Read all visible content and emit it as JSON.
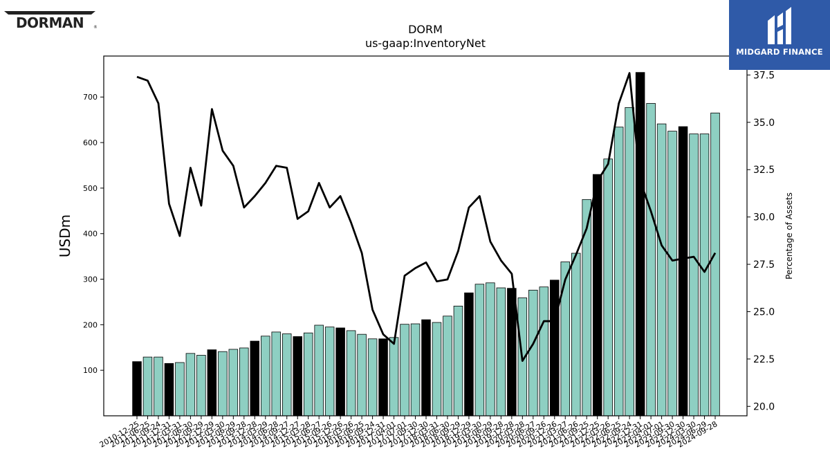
{
  "chart_data": {
    "type": "bar+line",
    "title": "DORM",
    "subtitle": "us-gaap:InventoryNet",
    "ylabel": "USDm",
    "y2label": "Percentage of Assets",
    "ylim": [
      0,
      790
    ],
    "y2lim": [
      19.5,
      38.5
    ],
    "yticks": [
      100,
      200,
      300,
      400,
      500,
      600,
      700
    ],
    "y2ticks": [
      20.0,
      22.5,
      25.0,
      27.5,
      30.0,
      32.5,
      35.0,
      37.5
    ],
    "grid": false,
    "colors": {
      "annual_bar": "#000000",
      "quarter_bar": "#8ecfc2",
      "line": "#000000"
    },
    "categories": [
      "2010-12-25",
      "2011-06-25",
      "2011-09-24",
      "2011-12-31",
      "2012-03-31",
      "2012-06-30",
      "2012-09-29",
      "2012-12-29",
      "2013-03-30",
      "2013-06-29",
      "2013-09-28",
      "2013-12-28",
      "2014-03-29",
      "2014-06-28",
      "2014-09-27",
      "2014-12-27",
      "2015-03-28",
      "2015-06-27",
      "2015-09-26",
      "2015-12-26",
      "2016-03-26",
      "2016-06-25",
      "2016-09-24",
      "2016-12-31",
      "2017-04-01",
      "2017-07-01",
      "2017-09-30",
      "2017-12-30",
      "2018-03-31",
      "2018-06-30",
      "2018-09-29",
      "2018-12-29",
      "2019-03-30",
      "2019-06-29",
      "2019-09-28",
      "2019-12-28",
      "2020-03-28",
      "2020-06-27",
      "2020-09-26",
      "2020-12-26",
      "2021-03-27",
      "2021-06-26",
      "2021-09-25",
      "2021-12-25",
      "2022-03-26",
      "2022-06-25",
      "2022-09-24",
      "2022-12-31",
      "2023-04-01",
      "2023-07-01",
      "2023-09-30",
      "2023-12-30",
      "2024-03-30",
      "2024-06-29",
      "2024-09-28"
    ],
    "xticklabels": [
      "2010-12-25",
      "2011-06-25",
      "2011-09-24",
      "2011-12-31",
      "2012-03-31",
      "2012-06-30",
      "2012-09-29",
      "2012-12-29",
      "2013-03-30",
      "2013-06-29",
      "2013-09-28",
      "2013-12-28",
      "2014-03-29",
      "2014-06-28",
      "2014-09-27",
      "2014-12-27",
      "2015-03-28",
      "2015-06-27",
      "2015-09-26",
      "2015-12-26",
      "2016-03-26",
      "2016-06-25",
      "2016-09-24",
      "2016-12-31",
      "2017-04-01",
      "2017-07-01",
      "2017-09-30",
      "2017-12-30",
      "2018-03-31",
      "2018-06-30",
      "2018-09-29",
      "2018-12-29",
      "2019-03-30",
      "2019-06-29",
      "2019-09-28",
      "2019-12-28",
      "2020-03-28",
      "2020-06-27",
      "2020-09-26",
      "2020-12-26",
      "2021-03-27",
      "2021-06-26",
      "2021-09-25",
      "2021-12-25",
      "2022-03-26",
      "2022-06-25",
      "2022-09-24",
      "2022-12-31",
      "2023-04-01",
      "2023-07-01",
      "2023-09-30",
      "2023-12-30",
      "2024-03-30",
      "2024-06-29",
      "2024-09-28"
    ],
    "annual": [
      true,
      false,
      false,
      true,
      false,
      false,
      false,
      true,
      false,
      false,
      false,
      true,
      false,
      false,
      false,
      true,
      false,
      false,
      false,
      true,
      false,
      false,
      false,
      true,
      false,
      false,
      false,
      true,
      false,
      false,
      false,
      true,
      false,
      false,
      false,
      true,
      false,
      false,
      false,
      true,
      false,
      false,
      false,
      true,
      false,
      false,
      false,
      true,
      false,
      false,
      false,
      true,
      false,
      false,
      false
    ],
    "series": [
      {
        "name": "InventoryNet",
        "type": "bar",
        "axis": "left",
        "values": [
          119,
          129,
          129,
          115,
          117,
          137,
          133,
          145,
          141,
          146,
          149,
          164,
          175,
          184,
          180,
          174,
          182,
          199,
          195,
          193,
          187,
          179,
          169,
          169,
          172,
          201,
          202,
          211,
          205,
          219,
          241,
          270,
          289,
          292,
          281,
          280,
          259,
          276,
          283,
          298,
          338,
          357,
          475,
          530,
          564,
          634,
          677,
          754,
          686,
          641,
          625,
          635,
          619,
          619,
          665
        ]
      },
      {
        "name": "Percentage of Assets",
        "type": "line",
        "axis": "right",
        "values": [
          37.4,
          37.2,
          36.0,
          30.7,
          29.0,
          32.6,
          30.6,
          35.7,
          33.5,
          32.7,
          30.5,
          31.1,
          31.8,
          32.7,
          32.6,
          29.9,
          30.3,
          31.8,
          30.5,
          31.1,
          29.7,
          28.1,
          25.1,
          23.8,
          23.3,
          26.9,
          27.3,
          27.6,
          26.6,
          26.7,
          28.2,
          30.5,
          31.1,
          28.7,
          27.7,
          27.0,
          22.4,
          23.3,
          24.5,
          24.5,
          26.7,
          28.0,
          29.4,
          31.9,
          32.8,
          36.0,
          37.6,
          31.9,
          30.3,
          28.5,
          27.7,
          27.8,
          27.9,
          27.1,
          28.1
        ]
      }
    ]
  },
  "logos": {
    "left": {
      "label": "DORMAN"
    },
    "right": {
      "label": "MIDGARD FINANCE",
      "color": "#2f5aa8"
    }
  }
}
